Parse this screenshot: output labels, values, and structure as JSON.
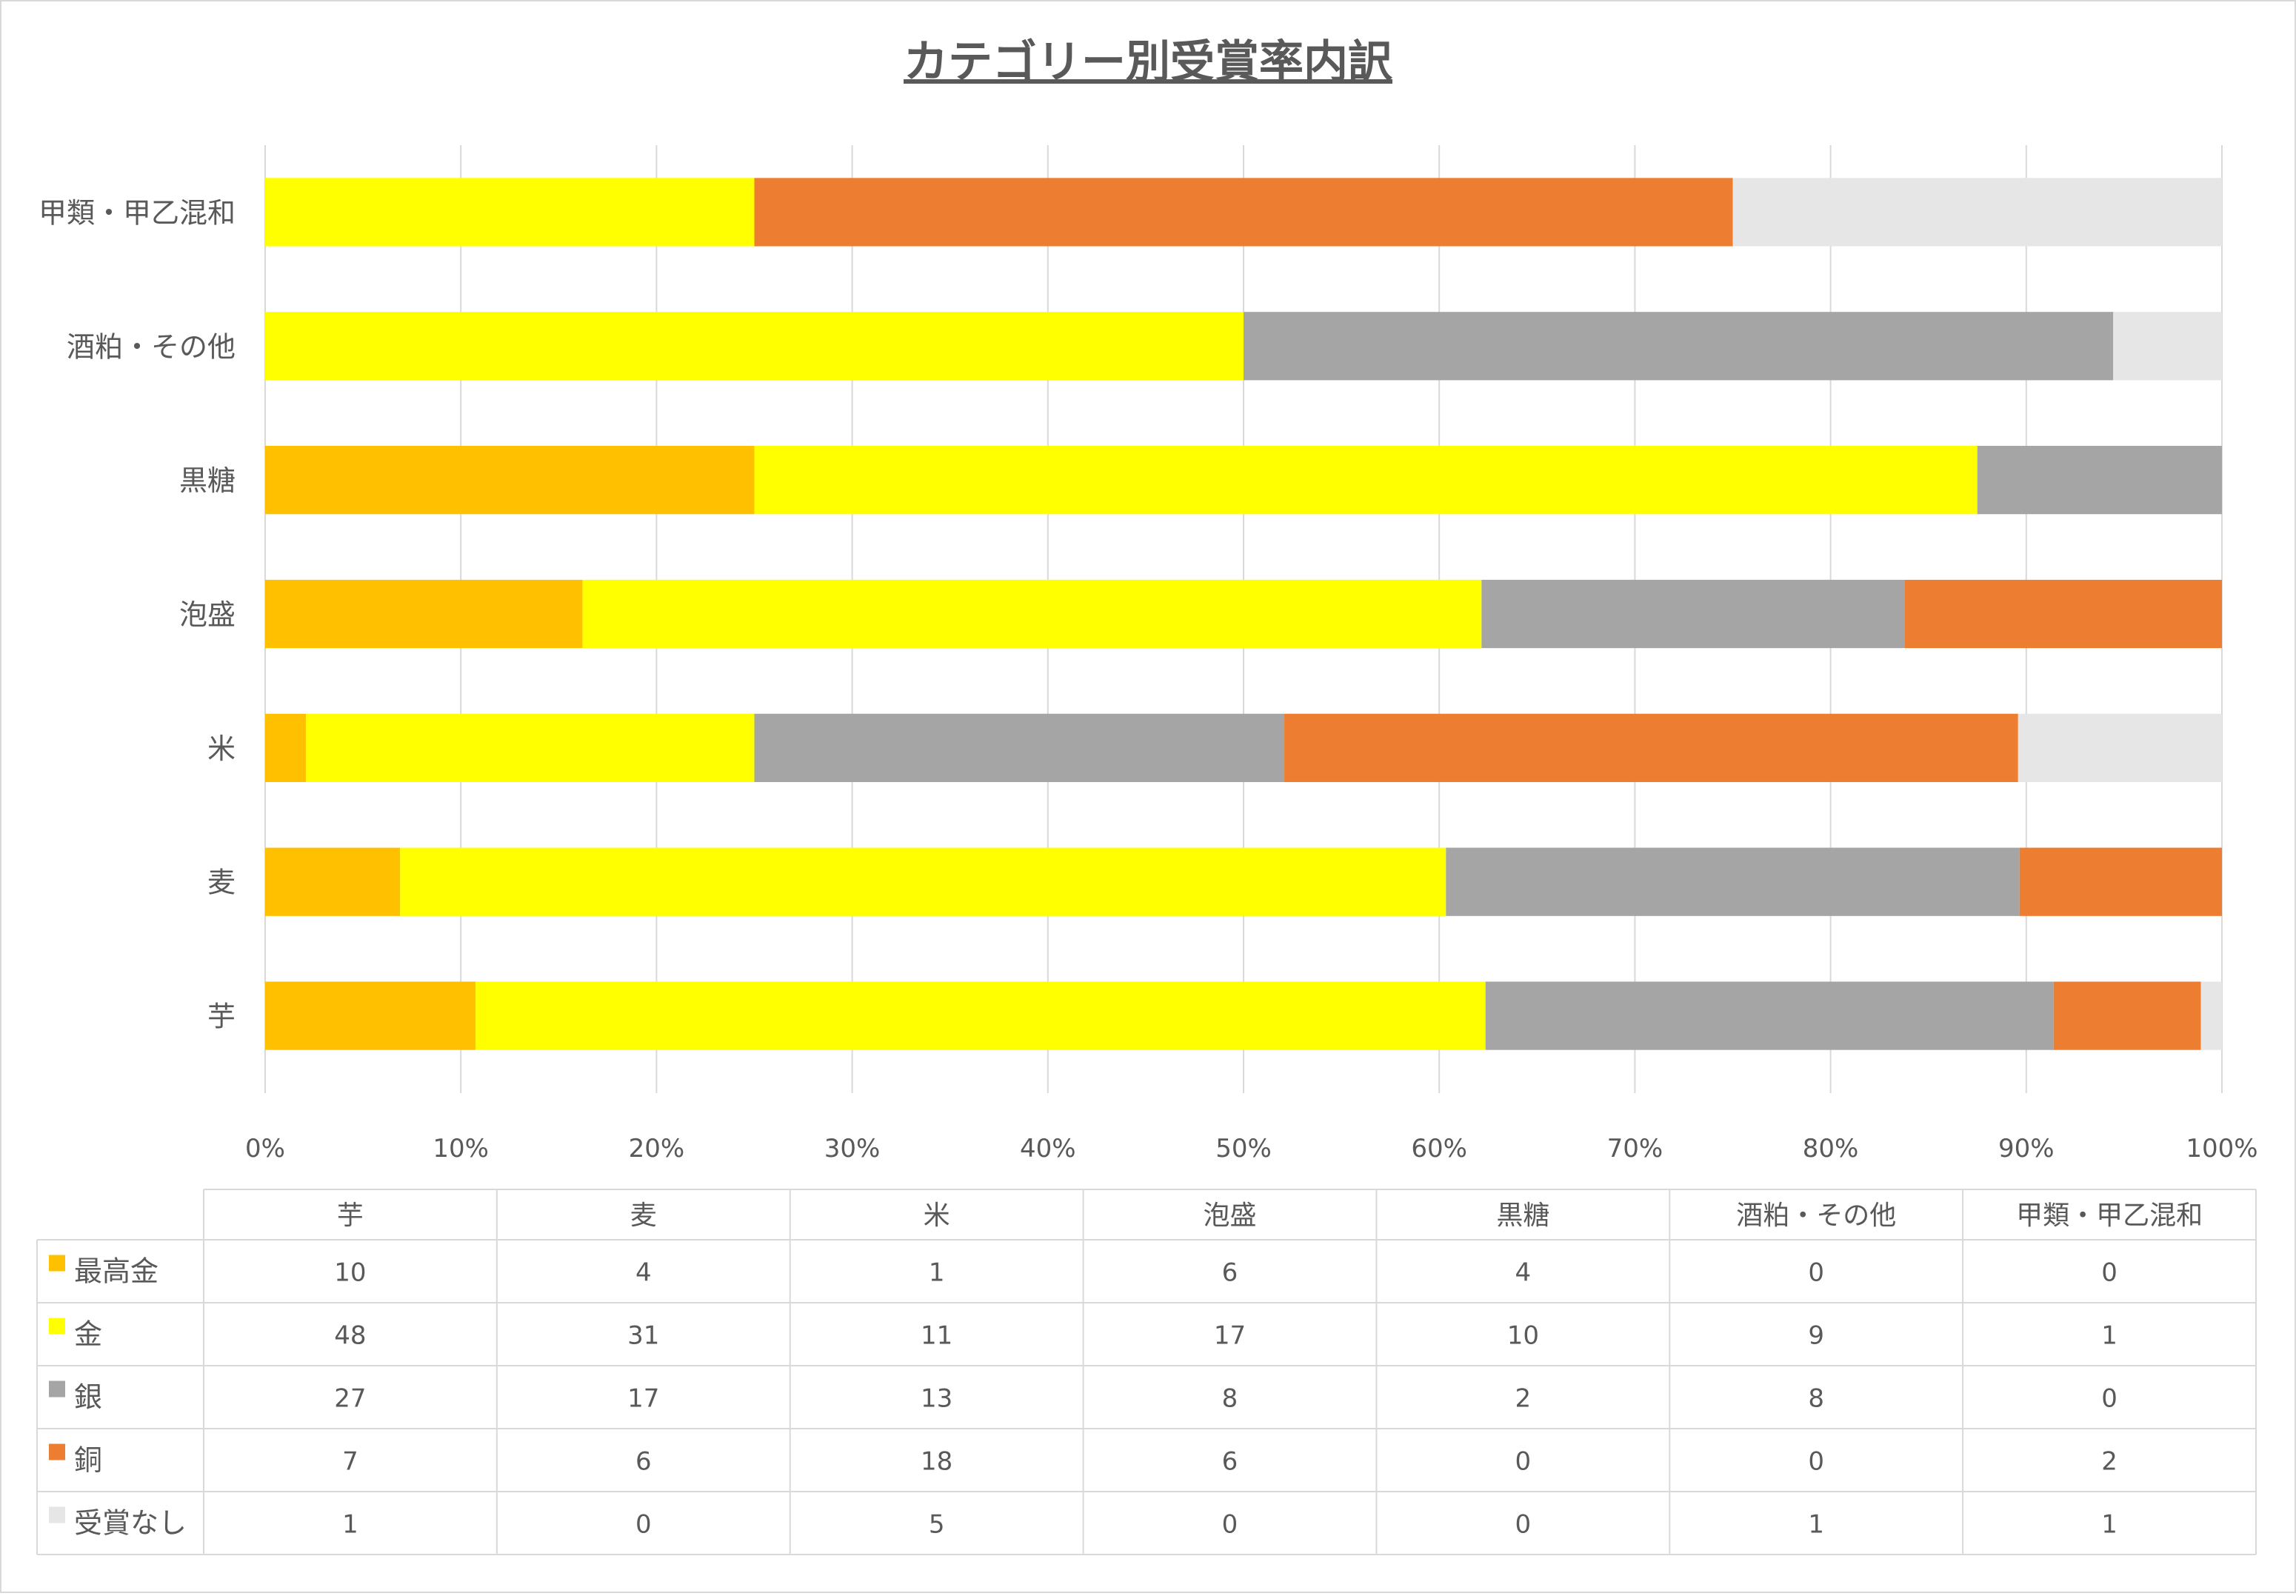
{
  "chart_data": {
    "type": "bar",
    "orientation": "horizontal",
    "stacked": "percent",
    "title": "カテゴリー別受賞率内訳",
    "categories": [
      "芋",
      "麦",
      "米",
      "泡盛",
      "黒糖",
      "酒粕・その他",
      "甲類・甲乙混和"
    ],
    "series": [
      {
        "name": "最高金",
        "color": "#FFC000",
        "values": [
          10,
          4,
          1,
          6,
          4,
          0,
          0
        ]
      },
      {
        "name": "金",
        "color": "#FFFF00",
        "values": [
          48,
          31,
          11,
          17,
          10,
          9,
          1
        ]
      },
      {
        "name": "銀",
        "color": "#A5A5A5",
        "values": [
          27,
          17,
          13,
          8,
          2,
          8,
          0
        ]
      },
      {
        "name": "銅",
        "color": "#ED7D31",
        "values": [
          7,
          6,
          18,
          6,
          0,
          0,
          2
        ]
      },
      {
        "name": "受賞なし",
        "color": "#E7E6E6",
        "values": [
          1,
          0,
          5,
          0,
          0,
          1,
          1
        ]
      }
    ],
    "x_ticks": [
      "0%",
      "10%",
      "20%",
      "30%",
      "40%",
      "50%",
      "60%",
      "70%",
      "80%",
      "90%",
      "100%"
    ],
    "xlim": [
      0,
      100
    ],
    "grid": true,
    "legend": "data-table-below"
  }
}
